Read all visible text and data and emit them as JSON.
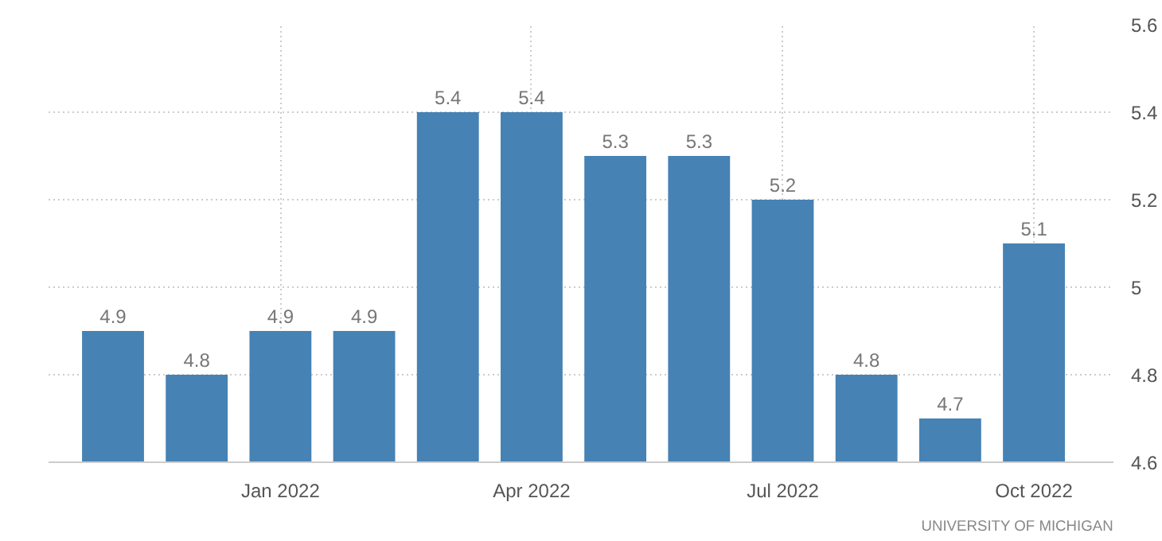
{
  "chart_data": {
    "type": "bar",
    "categories": [
      null,
      null,
      "Jan 2022",
      null,
      null,
      "Apr 2022",
      null,
      null,
      "Jul 2022",
      null,
      null,
      "Oct 2022"
    ],
    "values": [
      4.9,
      4.8,
      4.9,
      4.9,
      5.4,
      5.4,
      5.3,
      5.3,
      5.2,
      4.8,
      4.7,
      5.1
    ],
    "color": "#4682b4",
    "ylim": [
      4.6,
      5.6
    ],
    "yticks": [
      4.6,
      4.8,
      5,
      5.2,
      5.4,
      5.6
    ],
    "grid": true,
    "data_labels": true,
    "annotations": [
      "UNIVERSITY OF MICHIGAN"
    ]
  }
}
